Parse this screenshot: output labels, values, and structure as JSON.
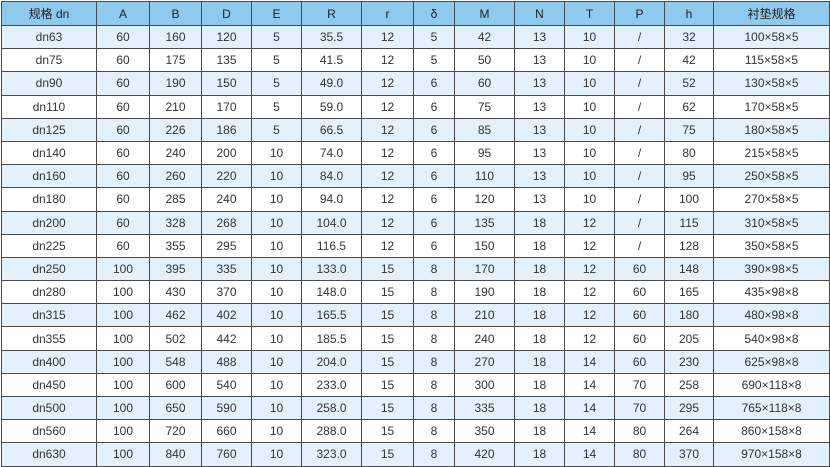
{
  "table": {
    "headers": [
      "规格 dn",
      "A",
      "B",
      "D",
      "E",
      "R",
      "r",
      "δ",
      "M",
      "N",
      "T",
      "P",
      "h",
      "衬垫规格"
    ],
    "rows": [
      [
        "dn63",
        "60",
        "160",
        "120",
        "5",
        "35.5",
        "12",
        "5",
        "42",
        "13",
        "10",
        "/",
        "32",
        "100×58×5"
      ],
      [
        "dn75",
        "60",
        "175",
        "135",
        "5",
        "41.5",
        "12",
        "5",
        "50",
        "13",
        "10",
        "/",
        "42",
        "115×58×5"
      ],
      [
        "dn90",
        "60",
        "190",
        "150",
        "5",
        "49.0",
        "12",
        "6",
        "60",
        "13",
        "10",
        "/",
        "52",
        "130×58×5"
      ],
      [
        "dn110",
        "60",
        "210",
        "170",
        "5",
        "59.0",
        "12",
        "6",
        "75",
        "13",
        "10",
        "/",
        "62",
        "170×58×5"
      ],
      [
        "dn125",
        "60",
        "226",
        "186",
        "5",
        "66.5",
        "12",
        "6",
        "85",
        "13",
        "10",
        "/",
        "75",
        "180×58×5"
      ],
      [
        "dn140",
        "60",
        "240",
        "200",
        "10",
        "74.0",
        "12",
        "6",
        "95",
        "13",
        "10",
        "/",
        "80",
        "215×58×5"
      ],
      [
        "dn160",
        "60",
        "260",
        "220",
        "10",
        "84.0",
        "12",
        "6",
        "110",
        "13",
        "10",
        "/",
        "95",
        "250×58×5"
      ],
      [
        "dn180",
        "60",
        "285",
        "240",
        "10",
        "94.0",
        "12",
        "6",
        "120",
        "13",
        "10",
        "/",
        "100",
        "270×58×5"
      ],
      [
        "dn200",
        "60",
        "328",
        "268",
        "10",
        "104.0",
        "12",
        "6",
        "135",
        "18",
        "12",
        "/",
        "115",
        "310×58×5"
      ],
      [
        "dn225",
        "60",
        "355",
        "295",
        "10",
        "116.5",
        "12",
        "6",
        "150",
        "18",
        "12",
        "/",
        "128",
        "350×58×5"
      ],
      [
        "dn250",
        "100",
        "395",
        "335",
        "10",
        "133.0",
        "15",
        "8",
        "170",
        "18",
        "12",
        "60",
        "148",
        "390×98×5"
      ],
      [
        "dn280",
        "100",
        "430",
        "370",
        "10",
        "148.0",
        "15",
        "8",
        "190",
        "18",
        "12",
        "60",
        "165",
        "435×98×8"
      ],
      [
        "dn315",
        "100",
        "462",
        "402",
        "10",
        "165.5",
        "15",
        "8",
        "210",
        "18",
        "12",
        "60",
        "180",
        "480×98×8"
      ],
      [
        "dn355",
        "100",
        "502",
        "442",
        "10",
        "185.5",
        "15",
        "8",
        "240",
        "18",
        "12",
        "60",
        "205",
        "540×98×8"
      ],
      [
        "dn400",
        "100",
        "548",
        "488",
        "10",
        "204.0",
        "15",
        "8",
        "270",
        "18",
        "14",
        "60",
        "230",
        "625×98×8"
      ],
      [
        "dn450",
        "100",
        "600",
        "540",
        "10",
        "233.0",
        "15",
        "8",
        "300",
        "18",
        "14",
        "70",
        "258",
        "690×118×8"
      ],
      [
        "dn500",
        "100",
        "650",
        "590",
        "10",
        "258.0",
        "15",
        "8",
        "335",
        "18",
        "14",
        "70",
        "295",
        "765×118×8"
      ],
      [
        "dn560",
        "100",
        "720",
        "660",
        "10",
        "288.0",
        "15",
        "8",
        "350",
        "18",
        "14",
        "80",
        "264",
        "860×158×8"
      ],
      [
        "dn630",
        "100",
        "840",
        "760",
        "10",
        "323.0",
        "15",
        "8",
        "420",
        "18",
        "14",
        "80",
        "370",
        "970×158×8"
      ]
    ]
  },
  "colors": {
    "header_bg": "#8ec9ee",
    "stripe_bg": "#e2f1fb",
    "border": "#4a4a4a"
  }
}
